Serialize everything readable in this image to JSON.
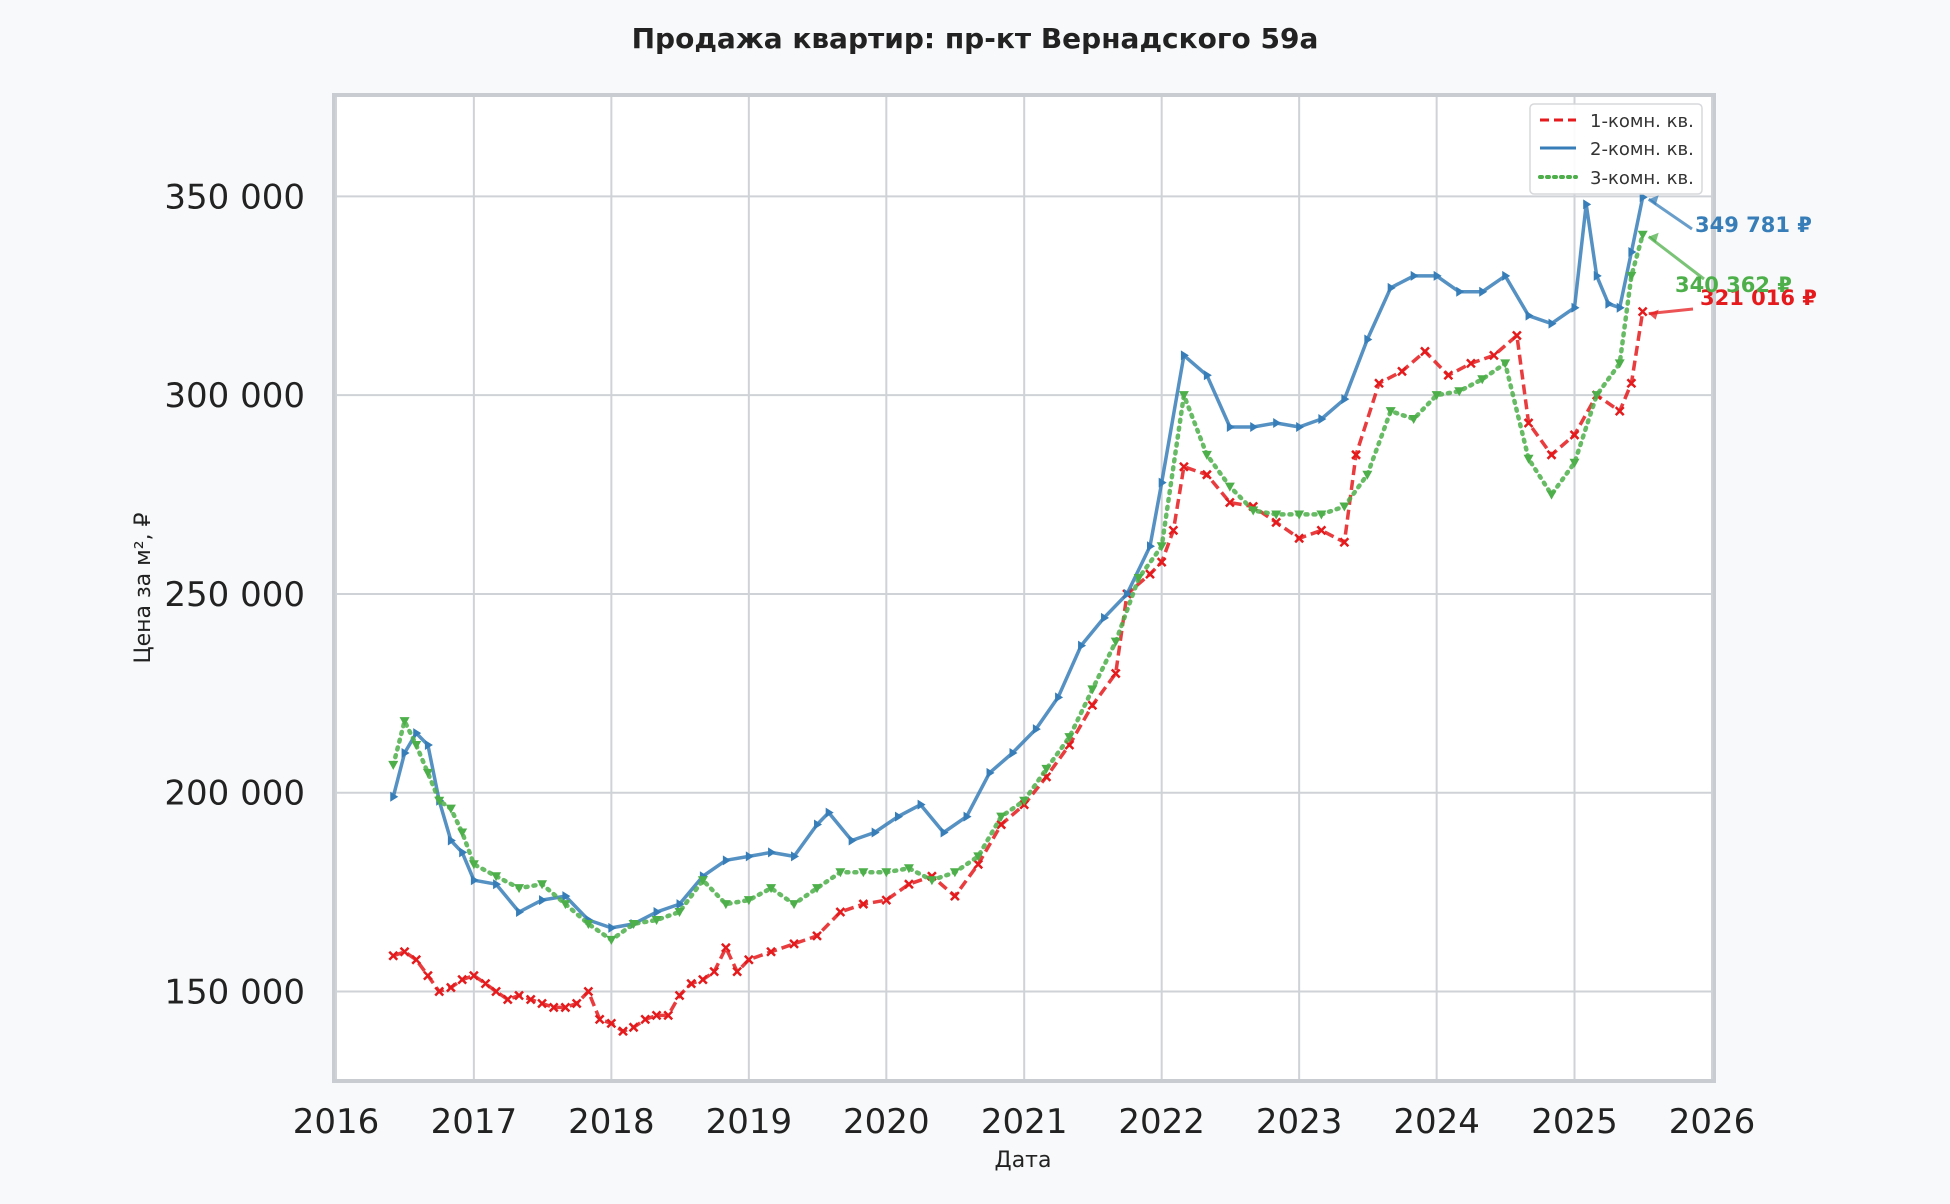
{
  "chart_data": {
    "type": "line",
    "title": "Продажа квартир: пр-кт Вернадского 59а",
    "xlabel": "Дата",
    "ylabel": "Цена за м², ₽",
    "x_ticks": [
      "2016",
      "2017",
      "2018",
      "2019",
      "2020",
      "2021",
      "2022",
      "2023",
      "2024",
      "2025",
      "2026"
    ],
    "y_ticks": [
      "150 000",
      "200 000",
      "250 000",
      "300 000",
      "350 000"
    ],
    "xlim": [
      "2016-01-01",
      "2026-01-01"
    ],
    "ylim": [
      128000,
      375000
    ],
    "grid": true,
    "legend_position": "top-right",
    "series": [
      {
        "name": "1-комн. кв.",
        "color": "#e41a1c",
        "line_style": "dashed",
        "marker": "x",
        "end_label": "321 016 ₽",
        "points": [
          [
            "2016-06-01",
            159000
          ],
          [
            "2016-07-01",
            160000
          ],
          [
            "2016-08-01",
            158000
          ],
          [
            "2016-09-01",
            154000
          ],
          [
            "2016-10-01",
            150000
          ],
          [
            "2016-11-01",
            151000
          ],
          [
            "2016-12-01",
            153000
          ],
          [
            "2017-01-01",
            154000
          ],
          [
            "2017-02-01",
            152000
          ],
          [
            "2017-03-01",
            150000
          ],
          [
            "2017-04-01",
            148000
          ],
          [
            "2017-05-01",
            149000
          ],
          [
            "2017-06-01",
            148000
          ],
          [
            "2017-07-01",
            147000
          ],
          [
            "2017-08-01",
            146000
          ],
          [
            "2017-09-01",
            146000
          ],
          [
            "2017-10-01",
            147000
          ],
          [
            "2017-11-01",
            150000
          ],
          [
            "2017-12-01",
            143000
          ],
          [
            "2018-01-01",
            142000
          ],
          [
            "2018-02-01",
            140000
          ],
          [
            "2018-03-01",
            141000
          ],
          [
            "2018-04-01",
            143000
          ],
          [
            "2018-05-01",
            144000
          ],
          [
            "2018-06-01",
            144000
          ],
          [
            "2018-07-01",
            149000
          ],
          [
            "2018-08-01",
            152000
          ],
          [
            "2018-09-01",
            153000
          ],
          [
            "2018-10-01",
            155000
          ],
          [
            "2018-11-01",
            161000
          ],
          [
            "2018-12-01",
            155000
          ],
          [
            "2019-01-01",
            158000
          ],
          [
            "2019-03-01",
            160000
          ],
          [
            "2019-05-01",
            162000
          ],
          [
            "2019-07-01",
            164000
          ],
          [
            "2019-09-01",
            170000
          ],
          [
            "2019-11-01",
            172000
          ],
          [
            "2020-01-01",
            173000
          ],
          [
            "2020-03-01",
            177000
          ],
          [
            "2020-05-01",
            179000
          ],
          [
            "2020-07-01",
            174000
          ],
          [
            "2020-09-01",
            182000
          ],
          [
            "2020-11-01",
            192000
          ],
          [
            "2021-01-01",
            197000
          ],
          [
            "2021-03-01",
            204000
          ],
          [
            "2021-05-01",
            212000
          ],
          [
            "2021-07-01",
            222000
          ],
          [
            "2021-09-01",
            230000
          ],
          [
            "2021-10-01",
            250000
          ],
          [
            "2021-12-01",
            255000
          ],
          [
            "2022-01-01",
            258000
          ],
          [
            "2022-02-01",
            266000
          ],
          [
            "2022-03-01",
            282000
          ],
          [
            "2022-05-01",
            280000
          ],
          [
            "2022-07-01",
            273000
          ],
          [
            "2022-09-01",
            272000
          ],
          [
            "2022-11-01",
            268000
          ],
          [
            "2023-01-01",
            264000
          ],
          [
            "2023-03-01",
            266000
          ],
          [
            "2023-05-01",
            263000
          ],
          [
            "2023-06-01",
            285000
          ],
          [
            "2023-08-01",
            303000
          ],
          [
            "2023-10-01",
            306000
          ],
          [
            "2023-12-01",
            311000
          ],
          [
            "2024-02-01",
            305000
          ],
          [
            "2024-04-01",
            308000
          ],
          [
            "2024-06-01",
            310000
          ],
          [
            "2024-08-01",
            315000
          ],
          [
            "2024-09-01",
            293000
          ],
          [
            "2024-11-01",
            285000
          ],
          [
            "2025-01-01",
            290000
          ],
          [
            "2025-03-01",
            300000
          ],
          [
            "2025-05-01",
            296000
          ],
          [
            "2025-06-01",
            303000
          ],
          [
            "2025-07-01",
            321016
          ]
        ]
      },
      {
        "name": "2-комн. кв.",
        "color": "#377eb8",
        "line_style": "solid",
        "marker": "triangle-right",
        "end_label": "349 781 ₽",
        "points": [
          [
            "2016-06-01",
            199000
          ],
          [
            "2016-07-01",
            210000
          ],
          [
            "2016-08-01",
            215000
          ],
          [
            "2016-09-01",
            212000
          ],
          [
            "2016-10-01",
            198000
          ],
          [
            "2016-11-01",
            188000
          ],
          [
            "2016-12-01",
            185000
          ],
          [
            "2017-01-01",
            178000
          ],
          [
            "2017-03-01",
            177000
          ],
          [
            "2017-05-01",
            170000
          ],
          [
            "2017-07-01",
            173000
          ],
          [
            "2017-09-01",
            174000
          ],
          [
            "2017-11-01",
            168000
          ],
          [
            "2018-01-01",
            166000
          ],
          [
            "2018-03-01",
            167000
          ],
          [
            "2018-05-01",
            170000
          ],
          [
            "2018-07-01",
            172000
          ],
          [
            "2018-09-01",
            179000
          ],
          [
            "2018-11-01",
            183000
          ],
          [
            "2019-01-01",
            184000
          ],
          [
            "2019-03-01",
            185000
          ],
          [
            "2019-05-01",
            184000
          ],
          [
            "2019-07-01",
            192000
          ],
          [
            "2019-08-01",
            195000
          ],
          [
            "2019-10-01",
            188000
          ],
          [
            "2019-12-01",
            190000
          ],
          [
            "2020-02-01",
            194000
          ],
          [
            "2020-04-01",
            197000
          ],
          [
            "2020-06-01",
            190000
          ],
          [
            "2020-08-01",
            194000
          ],
          [
            "2020-10-01",
            205000
          ],
          [
            "2020-12-01",
            210000
          ],
          [
            "2021-02-01",
            216000
          ],
          [
            "2021-04-01",
            224000
          ],
          [
            "2021-06-01",
            237000
          ],
          [
            "2021-08-01",
            244000
          ],
          [
            "2021-10-01",
            250000
          ],
          [
            "2021-12-01",
            262000
          ],
          [
            "2022-01-01",
            278000
          ],
          [
            "2022-03-01",
            310000
          ],
          [
            "2022-05-01",
            305000
          ],
          [
            "2022-07-01",
            292000
          ],
          [
            "2022-09-01",
            292000
          ],
          [
            "2022-11-01",
            293000
          ],
          [
            "2023-01-01",
            292000
          ],
          [
            "2023-03-01",
            294000
          ],
          [
            "2023-05-01",
            299000
          ],
          [
            "2023-07-01",
            314000
          ],
          [
            "2023-09-01",
            327000
          ],
          [
            "2023-11-01",
            330000
          ],
          [
            "2024-01-01",
            330000
          ],
          [
            "2024-03-01",
            326000
          ],
          [
            "2024-05-01",
            326000
          ],
          [
            "2024-07-01",
            330000
          ],
          [
            "2024-09-01",
            320000
          ],
          [
            "2024-11-01",
            318000
          ],
          [
            "2025-01-01",
            322000
          ],
          [
            "2025-02-01",
            348000
          ],
          [
            "2025-03-01",
            330000
          ],
          [
            "2025-04-01",
            323000
          ],
          [
            "2025-05-01",
            322000
          ],
          [
            "2025-06-01",
            336000
          ],
          [
            "2025-07-01",
            349781
          ]
        ]
      },
      {
        "name": "3-комн. кв.",
        "color": "#4daf4a",
        "line_style": "dotted",
        "marker": "triangle-down",
        "end_label": "340 362 ₽",
        "points": [
          [
            "2016-06-01",
            207000
          ],
          [
            "2016-07-01",
            218000
          ],
          [
            "2016-08-01",
            212000
          ],
          [
            "2016-09-01",
            205000
          ],
          [
            "2016-10-01",
            198000
          ],
          [
            "2016-11-01",
            196000
          ],
          [
            "2016-12-01",
            190000
          ],
          [
            "2017-01-01",
            182000
          ],
          [
            "2017-03-01",
            179000
          ],
          [
            "2017-05-01",
            176000
          ],
          [
            "2017-07-01",
            177000
          ],
          [
            "2017-09-01",
            172000
          ],
          [
            "2017-11-01",
            167000
          ],
          [
            "2018-01-01",
            163000
          ],
          [
            "2018-03-01",
            167000
          ],
          [
            "2018-05-01",
            168000
          ],
          [
            "2018-07-01",
            170000
          ],
          [
            "2018-09-01",
            178000
          ],
          [
            "2018-11-01",
            172000
          ],
          [
            "2019-01-01",
            173000
          ],
          [
            "2019-03-01",
            176000
          ],
          [
            "2019-05-01",
            172000
          ],
          [
            "2019-07-01",
            176000
          ],
          [
            "2019-09-01",
            180000
          ],
          [
            "2019-11-01",
            180000
          ],
          [
            "2020-01-01",
            180000
          ],
          [
            "2020-03-01",
            181000
          ],
          [
            "2020-05-01",
            178000
          ],
          [
            "2020-07-01",
            180000
          ],
          [
            "2020-09-01",
            184000
          ],
          [
            "2020-11-01",
            194000
          ],
          [
            "2021-01-01",
            198000
          ],
          [
            "2021-03-01",
            206000
          ],
          [
            "2021-05-01",
            214000
          ],
          [
            "2021-07-01",
            226000
          ],
          [
            "2021-09-01",
            238000
          ],
          [
            "2021-11-01",
            254000
          ],
          [
            "2022-01-01",
            262000
          ],
          [
            "2022-03-01",
            300000
          ],
          [
            "2022-05-01",
            285000
          ],
          [
            "2022-07-01",
            277000
          ],
          [
            "2022-09-01",
            271000
          ],
          [
            "2022-11-01",
            270000
          ],
          [
            "2023-01-01",
            270000
          ],
          [
            "2023-03-01",
            270000
          ],
          [
            "2023-05-01",
            272000
          ],
          [
            "2023-07-01",
            280000
          ],
          [
            "2023-09-01",
            296000
          ],
          [
            "2023-11-01",
            294000
          ],
          [
            "2024-01-01",
            300000
          ],
          [
            "2024-03-01",
            301000
          ],
          [
            "2024-05-01",
            304000
          ],
          [
            "2024-07-01",
            308000
          ],
          [
            "2024-09-01",
            284000
          ],
          [
            "2024-11-01",
            275000
          ],
          [
            "2025-01-01",
            283000
          ],
          [
            "2025-03-01",
            300000
          ],
          [
            "2025-05-01",
            308000
          ],
          [
            "2025-06-01",
            330000
          ],
          [
            "2025-07-01",
            340362
          ]
        ]
      }
    ]
  }
}
